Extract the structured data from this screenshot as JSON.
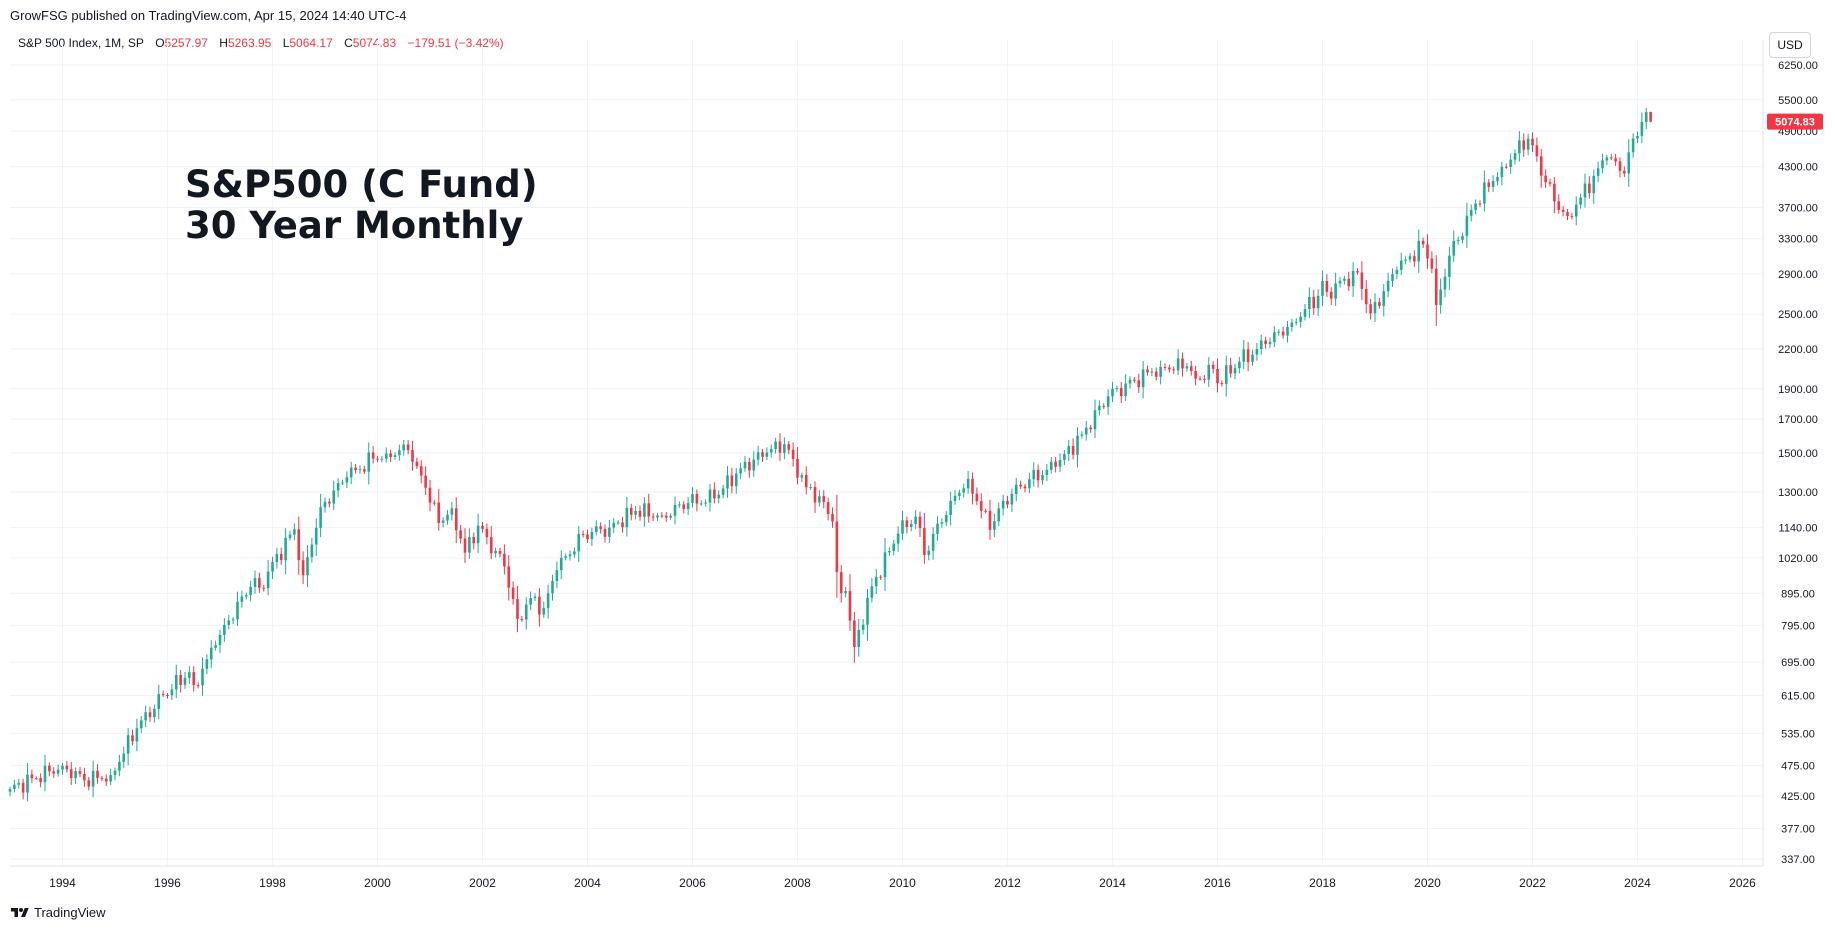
{
  "header": {
    "published_line": "GrowFSG published on TradingView.com, Apr 15, 2024 14:40 UTC-4"
  },
  "legend": {
    "symbol": "S&P 500 Index, 1M, SP",
    "open_label": "O",
    "open_value": "5257.97",
    "high_label": "H",
    "high_value": "5263.95",
    "low_label": "L",
    "low_value": "5064.17",
    "close_label": "C",
    "close_value": "5074.83",
    "change": "−179.51 (−3.42%)"
  },
  "annotation": {
    "line1": "S&P500 (C Fund)",
    "line2": "30 Year Monthly"
  },
  "price_axis": {
    "currency": "USD",
    "last_price_label": "5074.83",
    "tick_labels": [
      "6250.00",
      "5500.00",
      "4900.00",
      "4300.00",
      "3700.00",
      "3300.00",
      "2900.00",
      "2500.00",
      "2200.00",
      "1900.00",
      "1700.00",
      "1500.00",
      "1300.00",
      "1140.00",
      "1020.00",
      "895.00",
      "795.00",
      "695.00",
      "615.00",
      "535.00",
      "475.00",
      "425.00",
      "377.00",
      "337.00"
    ]
  },
  "footer": {
    "brand": "TradingView"
  },
  "colors": {
    "up": "#22ab94",
    "down": "#f23645",
    "grid": "#f0f3fa",
    "axis_text": "#131722",
    "last_price_bg": "#f23645"
  },
  "chart_data": {
    "type": "candlestick",
    "scale": "log",
    "interval": "1M",
    "x_tick_labels": [
      "1994",
      "1996",
      "1998",
      "2000",
      "2002",
      "2004",
      "2006",
      "2008",
      "2010",
      "2012",
      "2014",
      "2016",
      "2018",
      "2020",
      "2022",
      "2024",
      "2026"
    ],
    "ylim": [
      337,
      6250
    ],
    "grid": true,
    "waypoints": [
      [
        "1993-01",
        436
      ],
      [
        "1994-01",
        475
      ],
      [
        "1994-06",
        450
      ],
      [
        "1994-12",
        459
      ],
      [
        "1995-06",
        545
      ],
      [
        "1995-12",
        616
      ],
      [
        "1996-06",
        670
      ],
      [
        "1996-07",
        639
      ],
      [
        "1996-12",
        740
      ],
      [
        "1997-06",
        885
      ],
      [
        "1997-09",
        947
      ],
      [
        "1997-10",
        914
      ],
      [
        "1997-12",
        970
      ],
      [
        "1998-06",
        1133
      ],
      [
        "1998-08",
        957
      ],
      [
        "1998-12",
        1229
      ],
      [
        "1999-06",
        1372
      ],
      [
        "1999-12",
        1469
      ],
      [
        "2000-03",
        1498
      ],
      [
        "2000-08",
        1517
      ],
      [
        "2000-10",
        1429
      ],
      [
        "2000-12",
        1320
      ],
      [
        "2001-03",
        1160
      ],
      [
        "2001-06",
        1224
      ],
      [
        "2001-09",
        1040
      ],
      [
        "2001-12",
        1148
      ],
      [
        "2002-06",
        989
      ],
      [
        "2002-09",
        815
      ],
      [
        "2002-12",
        880
      ],
      [
        "2003-03",
        848
      ],
      [
        "2003-06",
        975
      ],
      [
        "2003-12",
        1112
      ],
      [
        "2004-06",
        1140
      ],
      [
        "2004-12",
        1212
      ],
      [
        "2005-06",
        1191
      ],
      [
        "2005-12",
        1248
      ],
      [
        "2006-06",
        1270
      ],
      [
        "2006-12",
        1418
      ],
      [
        "2007-06",
        1503
      ],
      [
        "2007-10",
        1549
      ],
      [
        "2007-12",
        1468
      ],
      [
        "2008-03",
        1323
      ],
      [
        "2008-06",
        1280
      ],
      [
        "2008-09",
        1166
      ],
      [
        "2008-10",
        968
      ],
      [
        "2008-11",
        896
      ],
      [
        "2008-12",
        903
      ],
      [
        "2009-02",
        735
      ],
      [
        "2009-06",
        919
      ],
      [
        "2009-12",
        1115
      ],
      [
        "2010-04",
        1187
      ],
      [
        "2010-06",
        1031
      ],
      [
        "2010-12",
        1258
      ],
      [
        "2011-04",
        1364
      ],
      [
        "2011-09",
        1131
      ],
      [
        "2011-12",
        1258
      ],
      [
        "2012-06",
        1362
      ],
      [
        "2012-12",
        1426
      ],
      [
        "2013-06",
        1606
      ],
      [
        "2013-12",
        1848
      ],
      [
        "2014-06",
        1960
      ],
      [
        "2014-12",
        2059
      ],
      [
        "2015-06",
        2063
      ],
      [
        "2015-08",
        1972
      ],
      [
        "2015-12",
        2044
      ],
      [
        "2016-01",
        1940
      ],
      [
        "2016-06",
        2099
      ],
      [
        "2016-12",
        2239
      ],
      [
        "2017-06",
        2423
      ],
      [
        "2017-12",
        2674
      ],
      [
        "2018-01",
        2824
      ],
      [
        "2018-02",
        2714
      ],
      [
        "2018-09",
        2914
      ],
      [
        "2018-12",
        2507
      ],
      [
        "2019-06",
        2942
      ],
      [
        "2019-12",
        3231
      ],
      [
        "2020-02",
        2954
      ],
      [
        "2020-03",
        2585
      ],
      [
        "2020-06",
        3100
      ],
      [
        "2020-12",
        3756
      ],
      [
        "2021-06",
        4298
      ],
      [
        "2021-12",
        4766
      ],
      [
        "2022-06",
        3785
      ],
      [
        "2022-09",
        3586
      ],
      [
        "2022-12",
        3840
      ],
      [
        "2023-06",
        4450
      ],
      [
        "2023-10",
        4194
      ],
      [
        "2023-12",
        4770
      ],
      [
        "2024-03",
        5254
      ],
      [
        "2024-04",
        5075
      ]
    ],
    "last_candle": {
      "open": 5257.97,
      "high": 5263.95,
      "low": 5064.17,
      "close": 5074.83
    }
  }
}
